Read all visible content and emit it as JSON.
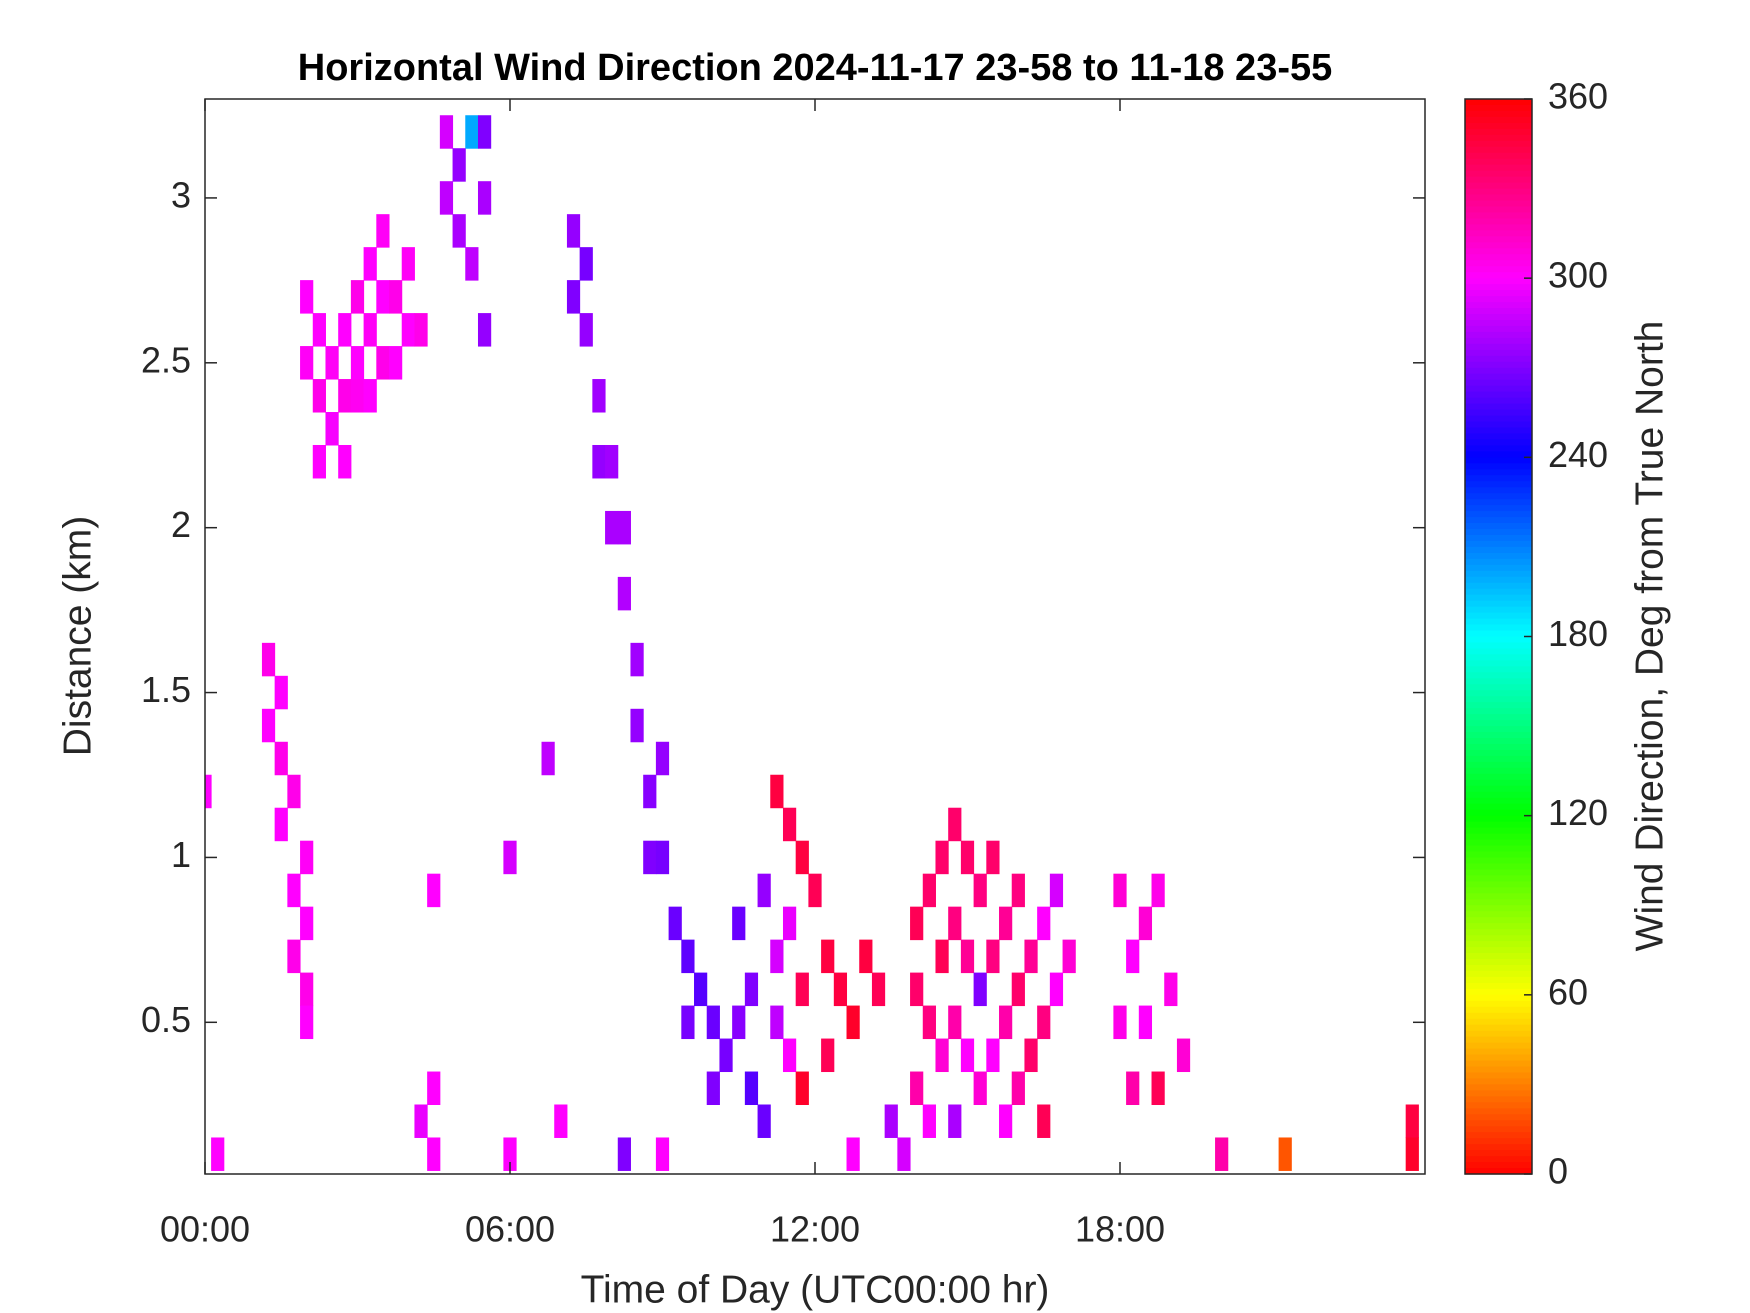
{
  "chart_data": {
    "type": "heatmap",
    "title": "Horizontal Wind Direction 2024-11-17 23-58 to 11-18 23-55",
    "xlabel": "Time of Day (UTC00:00 hr)",
    "ylabel": "Distance (km)",
    "colorbar_label": "Wind Direction, Deg from True North",
    "colormap": "hsv",
    "xlim": [
      0,
      24
    ],
    "xticks": [
      {
        "value": 0,
        "label": "00:00"
      },
      {
        "value": 6,
        "label": "06:00"
      },
      {
        "value": 12,
        "label": "12:00"
      },
      {
        "value": 18,
        "label": "18:00"
      }
    ],
    "ylim": [
      0.04,
      3.3
    ],
    "yticks": [
      0.5,
      1,
      1.5,
      2,
      2.5,
      3
    ],
    "clim": [
      0,
      360
    ],
    "cticks": [
      0,
      60,
      120,
      180,
      240,
      300,
      360
    ],
    "x": [
      2.25,
      2.25,
      2.5,
      2.5,
      2.75,
      2.75,
      2.75,
      3,
      3,
      3,
      3.25,
      3.25,
      3.25,
      3.5,
      3.5,
      3.5,
      3.75,
      3.75,
      4,
      4,
      4.25,
      2,
      2,
      2.25,
      1.25,
      1.25,
      1.5,
      1.5,
      1.5,
      1.75,
      1.75,
      1.75,
      2,
      2,
      2,
      2,
      4.75,
      4.75,
      5,
      5,
      5.25,
      5.25,
      5.5,
      5.5,
      5.5,
      7.25,
      7.25,
      7.5,
      7.5,
      7.75,
      7.75,
      8,
      8,
      8.25,
      8.25,
      8.5,
      8.5,
      8.75,
      8.75,
      9,
      9,
      9.25,
      9.5,
      9.5,
      9.75,
      10,
      10,
      10.25,
      10.5,
      10.5,
      10.75,
      10.75,
      11,
      11,
      11.25,
      11.25,
      11.5,
      11.5,
      11.25,
      11.5,
      11.75,
      11.75,
      11.75,
      12,
      12.25,
      12.5,
      12.75,
      13,
      13.25,
      12.25,
      14,
      14,
      14,
      14.25,
      14.25,
      14.25,
      14.5,
      14.5,
      14.5,
      14.75,
      14.75,
      14.75,
      14.75,
      15,
      15,
      15,
      15.25,
      15.25,
      15.25,
      15.5,
      15.5,
      15.5,
      15.75,
      15.75,
      15.75,
      16,
      16,
      16,
      16.25,
      16.25,
      16.5,
      16.5,
      16.5,
      16.75,
      16.75,
      17,
      18,
      18,
      18.25,
      18.25,
      18.5,
      18.5,
      18.75,
      18.75,
      19,
      19.25,
      0.25,
      4.25,
      4.5,
      4.5,
      6,
      7,
      8.25,
      9,
      12.75,
      13.5,
      13.75,
      20,
      21.25,
      23.75,
      23.75,
      0,
      6,
      6.75,
      4.5
    ],
    "y": [
      2.4,
      2.6,
      2.3,
      2.5,
      2.2,
      2.4,
      2.6,
      2.4,
      2.5,
      2.7,
      2.4,
      2.6,
      2.8,
      2.5,
      2.7,
      2.9,
      2.5,
      2.7,
      2.6,
      2.8,
      2.6,
      2.5,
      2.7,
      2.2,
      1.6,
      1.4,
      1.5,
      1.3,
      1.1,
      1.2,
      0.9,
      0.7,
      0.8,
      0.6,
      0.5,
      1.0,
      3.0,
      3.2,
      2.9,
      3.1,
      2.8,
      3.2,
      2.6,
      3.0,
      3.2,
      2.9,
      2.7,
      2.6,
      2.8,
      2.4,
      2.2,
      2.0,
      2.2,
      1.8,
      2.0,
      1.6,
      1.4,
      1.2,
      1.0,
      1.0,
      1.3,
      0.8,
      0.7,
      0.5,
      0.6,
      0.5,
      0.3,
      0.4,
      0.5,
      0.8,
      0.6,
      0.3,
      0.2,
      0.9,
      0.5,
      0.7,
      0.4,
      0.8,
      1.2,
      1.1,
      1.0,
      0.6,
      0.3,
      0.9,
      0.7,
      0.6,
      0.5,
      0.7,
      0.6,
      0.4,
      0.8,
      0.6,
      0.3,
      0.9,
      0.5,
      0.2,
      1.0,
      0.7,
      0.4,
      1.1,
      0.8,
      0.5,
      0.2,
      1.0,
      0.7,
      0.4,
      0.9,
      0.6,
      0.3,
      1.0,
      0.7,
      0.4,
      0.8,
      0.5,
      0.2,
      0.9,
      0.6,
      0.3,
      0.7,
      0.4,
      0.8,
      0.5,
      0.2,
      0.9,
      0.6,
      0.7,
      0.9,
      0.5,
      0.7,
      0.3,
      0.8,
      0.5,
      0.9,
      0.3,
      0.6,
      0.4,
      0.1,
      0.2,
      0.3,
      0.1,
      0.1,
      0.2,
      0.1,
      0.1,
      0.1,
      0.2,
      0.1,
      0.1,
      0.1,
      0.2,
      0.1,
      1.2,
      1.0,
      1.3,
      0.9
    ],
    "values": [
      305,
      300,
      298,
      302,
      300,
      305,
      300,
      303,
      300,
      305,
      300,
      302,
      300,
      305,
      300,
      302,
      300,
      305,
      300,
      302,
      305,
      302,
      300,
      300,
      305,
      300,
      300,
      305,
      300,
      305,
      300,
      305,
      300,
      305,
      300,
      302,
      285,
      290,
      280,
      275,
      285,
      200,
      275,
      280,
      270,
      275,
      270,
      275,
      268,
      278,
      275,
      280,
      278,
      282,
      280,
      278,
      275,
      272,
      270,
      268,
      275,
      265,
      262,
      268,
      260,
      265,
      270,
      268,
      272,
      265,
      270,
      260,
      265,
      275,
      285,
      290,
      300,
      295,
      345,
      340,
      345,
      340,
      350,
      340,
      345,
      345,
      350,
      345,
      340,
      340,
      340,
      335,
      320,
      335,
      330,
      300,
      335,
      340,
      310,
      335,
      330,
      320,
      280,
      335,
      325,
      300,
      330,
      270,
      310,
      335,
      330,
      300,
      325,
      320,
      300,
      330,
      335,
      320,
      325,
      335,
      300,
      330,
      340,
      290,
      300,
      310,
      310,
      305,
      300,
      320,
      310,
      300,
      305,
      340,
      305,
      310,
      300,
      295,
      300,
      300,
      300,
      300,
      270,
      300,
      300,
      280,
      290,
      320,
      20,
      345,
      350,
      300,
      290,
      285,
      300
    ]
  }
}
